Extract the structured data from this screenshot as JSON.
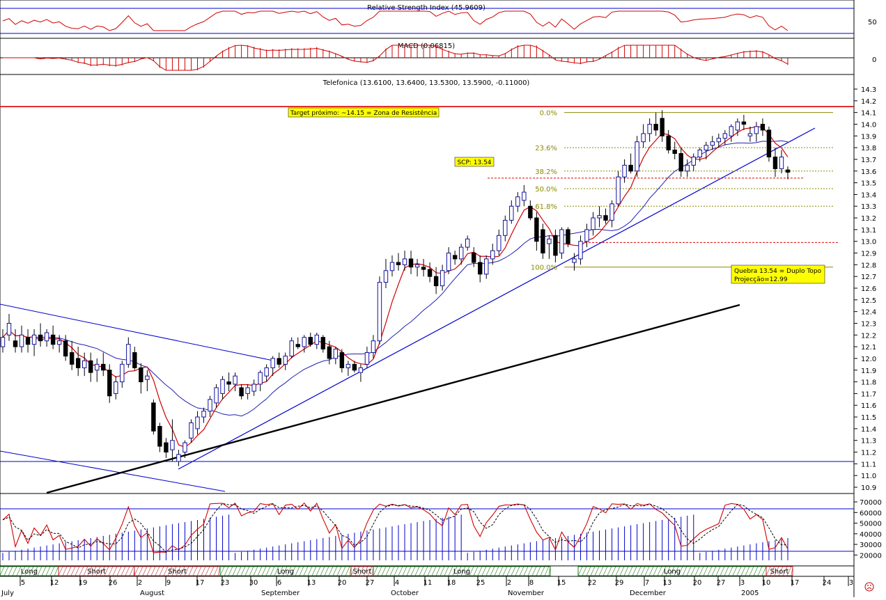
{
  "colors": {
    "up_candle": "#ffffff",
    "down_candle": "#000000",
    "candle_outline": "#1010a0",
    "ma_fast": "#d00000",
    "ma_slow": "#2020b0",
    "trendline": "#0000cc",
    "support_line": "#000000",
    "resistance": "#dd0000",
    "fib": "#8a8a00",
    "annotation_bg": "#ffff00",
    "long_band": "#208020",
    "short_band": "#c03030"
  },
  "panels": {
    "rsi": {
      "title": "Relative Strength Index (45.9609)",
      "ticks": [
        "50"
      ]
    },
    "macd": {
      "title": "MACD (0.06815)",
      "ticks": [
        "0"
      ]
    },
    "price": {
      "title": "Telefonica (13.6100, 13.6400, 13.5300, 13.5900, -0.11000)"
    },
    "stoch": {
      "ticks": [
        "70000",
        "60000",
        "50000",
        "40000",
        "30000",
        "20000"
      ]
    }
  },
  "annotations": {
    "target": "Target próximo: ~14.15 = Zona de Resistência",
    "scp": "SCP: 13.54",
    "quebra": "Quebra 13.54 = Duplo Topo",
    "projecao": "Projecção=12.99",
    "sad_icon": "sad-face-icon"
  },
  "fibonacci": {
    "levels": [
      {
        "label": "0.0%",
        "value": 14.1
      },
      {
        "label": "23.6%",
        "value": 13.8
      },
      {
        "label": "38.2%",
        "value": 13.6
      },
      {
        "label": "50.0%",
        "value": 13.45
      },
      {
        "label": "61.8%",
        "value": 13.3
      },
      {
        "label": "100.0%",
        "value": 12.78
      }
    ]
  },
  "signal_bands": [
    {
      "label": "Long",
      "type": "long"
    },
    {
      "label": "Short",
      "type": "short"
    },
    {
      "label": "Short",
      "type": "short"
    },
    {
      "label": "Long",
      "type": "long"
    },
    {
      "label": "Short",
      "type": "short"
    },
    {
      "label": "Long",
      "type": "long"
    },
    {
      "label": "Long",
      "type": "long"
    },
    {
      "label": "Short",
      "type": "short"
    }
  ],
  "chart_data": {
    "type": "candlestick",
    "title": "Telefonica (13.6100, 13.6400, 13.5300, 13.5900, -0.11000)",
    "ylim": [
      10.85,
      14.35
    ],
    "y_ticks": [
      "14.3",
      "14.2",
      "14.1",
      "14.0",
      "13.9",
      "13.8",
      "13.7",
      "13.6",
      "13.5",
      "13.4",
      "13.3",
      "13.2",
      "13.1",
      "13.0",
      "12.9",
      "12.8",
      "12.7",
      "12.6",
      "12.5",
      "12.4",
      "12.3",
      "12.2",
      "12.1",
      "12.0",
      "11.9",
      "11.8",
      "11.7",
      "11.6",
      "11.5",
      "11.4",
      "11.3",
      "11.2",
      "11.1",
      "11.0",
      "10.9"
    ],
    "x_day_labels": [
      "5",
      "12",
      "19",
      "26",
      "2",
      "9",
      "17",
      "23",
      "30",
      "6",
      "13",
      "20",
      "27",
      "4",
      "11",
      "18",
      "25",
      "2",
      "8",
      "15",
      "22",
      "29",
      "7",
      "13",
      "20",
      "27",
      "3",
      "10",
      "17",
      "24",
      "3"
    ],
    "x_month_labels": [
      "July",
      "August",
      "September",
      "October",
      "November",
      "December",
      "2005"
    ],
    "reference_levels": {
      "resistance": 14.15,
      "support": 11.12,
      "scp": 13.54,
      "projection": 12.99
    },
    "ohlc": [
      [
        12.1,
        12.25,
        12.05,
        12.18
      ],
      [
        12.2,
        12.38,
        12.15,
        12.3
      ],
      [
        12.15,
        12.25,
        12.05,
        12.1
      ],
      [
        12.1,
        12.28,
        12.05,
        12.2
      ],
      [
        12.18,
        12.25,
        12.05,
        12.12
      ],
      [
        12.12,
        12.25,
        12.02,
        12.2
      ],
      [
        12.2,
        12.3,
        12.1,
        12.15
      ],
      [
        12.15,
        12.25,
        12.1,
        12.22
      ],
      [
        12.2,
        12.28,
        12.08,
        12.12
      ],
      [
        12.12,
        12.2,
        12.05,
        12.15
      ],
      [
        12.15,
        12.2,
        11.98,
        12.02
      ],
      [
        12.05,
        12.15,
        11.9,
        11.95
      ],
      [
        12.0,
        12.1,
        11.85,
        11.92
      ],
      [
        11.92,
        12.05,
        11.85,
        11.98
      ],
      [
        11.98,
        12.05,
        11.8,
        11.88
      ],
      [
        11.9,
        12.0,
        11.8,
        11.95
      ],
      [
        11.95,
        12.05,
        11.85,
        11.9
      ],
      [
        11.9,
        11.95,
        11.62,
        11.68
      ],
      [
        11.7,
        11.85,
        11.65,
        11.8
      ],
      [
        11.8,
        11.98,
        11.75,
        11.95
      ],
      [
        11.95,
        12.18,
        11.92,
        12.12
      ],
      [
        12.05,
        12.1,
        11.9,
        11.92
      ],
      [
        11.92,
        11.96,
        11.7,
        11.8
      ],
      [
        11.82,
        11.9,
        11.72,
        11.85
      ],
      [
        11.62,
        11.65,
        11.35,
        11.38
      ],
      [
        11.42,
        11.45,
        11.2,
        11.25
      ],
      [
        11.28,
        11.32,
        11.15,
        11.2
      ],
      [
        11.22,
        11.48,
        11.12,
        11.3
      ],
      [
        11.12,
        11.22,
        11.08,
        11.18
      ],
      [
        11.2,
        11.3,
        11.15,
        11.28
      ],
      [
        11.32,
        11.48,
        11.28,
        11.45
      ],
      [
        11.4,
        11.55,
        11.35,
        11.5
      ],
      [
        11.5,
        11.58,
        11.45,
        11.55
      ],
      [
        11.55,
        11.68,
        11.5,
        11.65
      ],
      [
        11.62,
        11.78,
        11.58,
        11.75
      ],
      [
        11.7,
        11.85,
        11.65,
        11.82
      ],
      [
        11.8,
        11.88,
        11.72,
        11.78
      ],
      [
        11.78,
        11.88,
        11.72,
        11.85
      ],
      [
        11.75,
        11.78,
        11.65,
        11.68
      ],
      [
        11.7,
        11.78,
        11.65,
        11.75
      ],
      [
        11.72,
        11.82,
        11.68,
        11.78
      ],
      [
        11.78,
        11.9,
        11.72,
        11.88
      ],
      [
        11.85,
        11.95,
        11.8,
        11.92
      ],
      [
        11.92,
        12.02,
        11.85,
        12.0
      ],
      [
        12.0,
        12.05,
        11.92,
        11.95
      ],
      [
        11.95,
        12.05,
        11.9,
        12.02
      ],
      [
        12.02,
        12.18,
        12.0,
        12.15
      ],
      [
        12.12,
        12.18,
        12.08,
        12.1
      ],
      [
        12.1,
        12.2,
        12.05,
        12.18
      ],
      [
        12.18,
        12.22,
        12.1,
        12.12
      ],
      [
        12.12,
        12.22,
        12.08,
        12.2
      ],
      [
        12.18,
        12.2,
        12.05,
        12.08
      ],
      [
        12.1,
        12.15,
        11.95,
        12.0
      ],
      [
        12.0,
        12.1,
        11.95,
        12.08
      ],
      [
        12.05,
        12.08,
        11.88,
        11.92
      ],
      [
        11.92,
        11.98,
        11.85,
        11.95
      ],
      [
        11.95,
        11.98,
        11.88,
        11.9
      ],
      [
        11.88,
        11.95,
        11.8,
        11.92
      ],
      [
        11.95,
        12.1,
        11.92,
        12.05
      ],
      [
        12.05,
        12.2,
        12.0,
        12.15
      ],
      [
        12.15,
        12.7,
        12.12,
        12.65
      ],
      [
        12.65,
        12.85,
        12.6,
        12.75
      ],
      [
        12.75,
        12.88,
        12.7,
        12.82
      ],
      [
        12.82,
        12.9,
        12.75,
        12.8
      ],
      [
        12.8,
        12.92,
        12.75,
        12.85
      ],
      [
        12.85,
        12.92,
        12.72,
        12.78
      ],
      [
        12.78,
        12.85,
        12.7,
        12.8
      ],
      [
        12.78,
        12.85,
        12.7,
        12.76
      ],
      [
        12.76,
        12.82,
        12.65,
        12.7
      ],
      [
        12.7,
        12.78,
        12.55,
        12.62
      ],
      [
        12.62,
        12.8,
        12.58,
        12.75
      ],
      [
        12.75,
        12.95,
        12.72,
        12.9
      ],
      [
        12.88,
        12.92,
        12.8,
        12.85
      ],
      [
        12.85,
        12.98,
        12.8,
        12.95
      ],
      [
        12.95,
        13.05,
        12.92,
        13.02
      ],
      [
        12.9,
        12.95,
        12.78,
        12.82
      ],
      [
        12.82,
        12.88,
        12.65,
        12.72
      ],
      [
        12.72,
        12.88,
        12.68,
        12.85
      ],
      [
        12.85,
        12.98,
        12.8,
        12.92
      ],
      [
        12.92,
        13.1,
        12.88,
        13.05
      ],
      [
        13.05,
        13.22,
        13.0,
        13.18
      ],
      [
        13.18,
        13.35,
        13.15,
        13.3
      ],
      [
        13.3,
        13.42,
        13.25,
        13.38
      ],
      [
        13.35,
        13.48,
        13.3,
        13.42
      ],
      [
        13.3,
        13.35,
        13.18,
        13.2
      ],
      [
        13.2,
        13.25,
        12.92,
        13.0
      ],
      [
        13.1,
        13.15,
        12.85,
        12.9
      ],
      [
        12.98,
        13.05,
        12.85,
        13.02
      ],
      [
        13.05,
        13.1,
        12.82,
        12.88
      ],
      [
        12.9,
        13.12,
        12.85,
        13.1
      ],
      [
        13.1,
        13.12,
        12.95,
        12.98
      ],
      [
        12.82,
        12.9,
        12.75,
        12.85
      ],
      [
        12.85,
        13.05,
        12.8,
        13.0
      ],
      [
        13.0,
        13.15,
        12.95,
        13.1
      ],
      [
        13.1,
        13.25,
        13.05,
        13.2
      ],
      [
        13.2,
        13.3,
        13.12,
        13.22
      ],
      [
        13.22,
        13.28,
        13.15,
        13.18
      ],
      [
        13.18,
        13.35,
        13.12,
        13.32
      ],
      [
        13.32,
        13.6,
        13.3,
        13.55
      ],
      [
        13.55,
        13.7,
        13.5,
        13.65
      ],
      [
        13.65,
        13.75,
        13.58,
        13.6
      ],
      [
        13.6,
        13.9,
        13.55,
        13.85
      ],
      [
        13.85,
        14.0,
        13.8,
        13.92
      ],
      [
        13.92,
        14.05,
        13.85,
        14.0
      ],
      [
        14.0,
        14.1,
        13.9,
        13.95
      ],
      [
        14.05,
        14.12,
        13.85,
        13.9
      ],
      [
        13.9,
        13.95,
        13.75,
        13.78
      ],
      [
        13.78,
        13.85,
        13.7,
        13.75
      ],
      [
        13.75,
        13.8,
        13.55,
        13.6
      ],
      [
        13.6,
        13.7,
        13.55,
        13.65
      ],
      [
        13.65,
        13.75,
        13.6,
        13.72
      ],
      [
        13.72,
        13.8,
        13.68,
        13.78
      ],
      [
        13.78,
        13.85,
        13.7,
        13.82
      ],
      [
        13.82,
        13.9,
        13.78,
        13.85
      ],
      [
        13.85,
        13.92,
        13.8,
        13.88
      ],
      [
        13.88,
        13.95,
        13.82,
        13.92
      ],
      [
        13.9,
        14.0,
        13.85,
        13.98
      ],
      [
        13.95,
        14.05,
        13.9,
        14.02
      ],
      [
        14.02,
        14.08,
        13.95,
        14.0
      ],
      [
        13.9,
        13.98,
        13.85,
        13.92
      ],
      [
        13.92,
        14.02,
        13.85,
        13.98
      ],
      [
        14.0,
        14.05,
        13.9,
        13.95
      ],
      [
        13.95,
        13.98,
        13.68,
        13.72
      ],
      [
        13.72,
        13.8,
        13.55,
        13.62
      ],
      [
        13.62,
        13.78,
        13.58,
        13.72
      ],
      [
        13.61,
        13.64,
        13.53,
        13.59
      ]
    ]
  }
}
